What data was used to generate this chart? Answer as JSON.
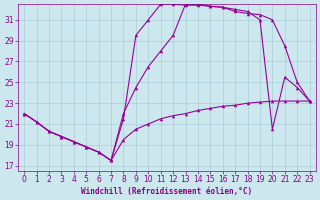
{
  "xlabel": "Windchill (Refroidissement éolien,°C)",
  "background_color": "#cce8ee",
  "grid_color": "#aacdd6",
  "line_color": "#990099",
  "xlim": [
    -0.5,
    23.5
  ],
  "ylim": [
    16.5,
    32.5
  ],
  "yticks": [
    17,
    19,
    21,
    23,
    25,
    27,
    29,
    31
  ],
  "xticks": [
    0,
    1,
    2,
    3,
    4,
    5,
    6,
    7,
    8,
    9,
    10,
    11,
    12,
    13,
    14,
    15,
    16,
    17,
    18,
    19,
    20,
    21,
    22,
    23
  ],
  "series1_x": [
    0,
    1,
    2,
    3,
    4,
    5,
    6,
    7,
    8,
    9,
    10,
    11,
    12,
    13,
    14,
    15,
    16,
    17,
    18,
    19,
    20,
    21,
    22,
    23
  ],
  "series1_y": [
    22.0,
    21.2,
    20.3,
    19.8,
    19.3,
    18.8,
    18.3,
    17.5,
    19.5,
    20.5,
    21.0,
    21.5,
    21.8,
    22.0,
    22.3,
    22.5,
    22.7,
    22.8,
    23.0,
    23.1,
    23.2,
    23.2,
    23.2,
    23.2
  ],
  "series2_x": [
    0,
    1,
    2,
    3,
    4,
    5,
    6,
    7,
    8,
    9,
    10,
    11,
    12,
    13,
    14,
    15,
    16,
    17,
    18,
    19,
    20,
    21,
    22,
    23
  ],
  "series2_y": [
    22.0,
    21.2,
    20.3,
    19.8,
    19.3,
    18.8,
    18.3,
    17.5,
    22.0,
    24.5,
    26.5,
    28.0,
    29.5,
    32.5,
    32.5,
    32.3,
    32.2,
    31.8,
    31.6,
    31.5,
    31.0,
    28.5,
    25.0,
    23.2
  ],
  "series3_x": [
    0,
    1,
    2,
    3,
    4,
    5,
    6,
    7,
    8,
    9,
    10,
    11,
    12,
    13,
    14,
    15,
    16,
    17,
    18,
    19,
    20,
    21,
    22,
    23
  ],
  "series3_y": [
    22.0,
    21.2,
    20.3,
    19.8,
    19.3,
    18.8,
    18.3,
    17.5,
    21.5,
    29.5,
    31.0,
    32.5,
    32.5,
    32.4,
    32.4,
    32.3,
    32.2,
    32.0,
    31.8,
    31.0,
    20.5,
    25.5,
    24.5,
    23.2
  ],
  "marker": "^",
  "markersize": 2.5,
  "linewidth": 0.8,
  "font_color": "#880088",
  "tick_fontsize": 5.5,
  "xlabel_fontsize": 5.5
}
